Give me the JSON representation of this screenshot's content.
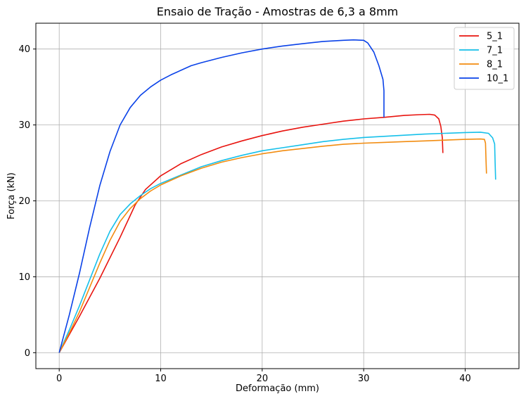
{
  "chart_data": {
    "type": "line",
    "title": "Ensaio de Tração - Amostras de 6,3 a 8mm",
    "xlabel": "Deformação (mm)",
    "ylabel": "Força (kN)",
    "xlim": [
      -2.3,
      45.3
    ],
    "ylim": [
      -2.1,
      43.4
    ],
    "xticks": [
      0,
      10,
      20,
      30,
      40
    ],
    "yticks": [
      0,
      10,
      20,
      30,
      40
    ],
    "xtick_labels": [
      "0",
      "10",
      "20",
      "30",
      "40"
    ],
    "ytick_labels": [
      "0",
      "10",
      "20",
      "30",
      "40"
    ],
    "grid": true,
    "legend_position": "top-right",
    "series": [
      {
        "name": "5_1",
        "color": "#e8140f",
        "points": [
          [
            0,
            0
          ],
          [
            2,
            4.8
          ],
          [
            4,
            9.8
          ],
          [
            6,
            15.2
          ],
          [
            7.5,
            19.5
          ],
          [
            8.5,
            21.5
          ],
          [
            10,
            23.3
          ],
          [
            12,
            24.9
          ],
          [
            14,
            26.1
          ],
          [
            16,
            27.1
          ],
          [
            18,
            27.9
          ],
          [
            20,
            28.6
          ],
          [
            22,
            29.2
          ],
          [
            24,
            29.7
          ],
          [
            26,
            30.1
          ],
          [
            28,
            30.5
          ],
          [
            30,
            30.8
          ],
          [
            32,
            31.0
          ],
          [
            34,
            31.25
          ],
          [
            35.5,
            31.35
          ],
          [
            36.5,
            31.4
          ],
          [
            37.0,
            31.3
          ],
          [
            37.4,
            30.8
          ],
          [
            37.6,
            29.8
          ],
          [
            37.75,
            28.3
          ],
          [
            37.8,
            26.3
          ]
        ]
      },
      {
        "name": "7_1",
        "color": "#16c0ea",
        "points": [
          [
            0,
            0
          ],
          [
            1,
            3.0
          ],
          [
            2,
            6.2
          ],
          [
            3,
            9.6
          ],
          [
            4,
            13.0
          ],
          [
            5,
            16.0
          ],
          [
            6,
            18.2
          ],
          [
            7,
            19.6
          ],
          [
            8,
            20.7
          ],
          [
            9,
            21.6
          ],
          [
            10,
            22.3
          ],
          [
            12,
            23.4
          ],
          [
            14,
            24.5
          ],
          [
            16,
            25.3
          ],
          [
            18,
            26.0
          ],
          [
            20,
            26.6
          ],
          [
            22,
            27.0
          ],
          [
            24,
            27.4
          ],
          [
            26,
            27.8
          ],
          [
            28,
            28.1
          ],
          [
            30,
            28.35
          ],
          [
            32,
            28.5
          ],
          [
            34,
            28.65
          ],
          [
            36,
            28.8
          ],
          [
            38,
            28.9
          ],
          [
            40,
            29.0
          ],
          [
            41.5,
            29.05
          ],
          [
            42.3,
            28.9
          ],
          [
            42.7,
            28.3
          ],
          [
            42.9,
            27.5
          ],
          [
            42.95,
            25.0
          ],
          [
            43.0,
            22.8
          ]
        ]
      },
      {
        "name": "8_1",
        "color": "#f28c10",
        "points": [
          [
            0,
            0
          ],
          [
            1,
            2.6
          ],
          [
            2,
            5.4
          ],
          [
            3,
            8.6
          ],
          [
            4,
            11.8
          ],
          [
            5,
            14.8
          ],
          [
            6,
            17.3
          ],
          [
            7,
            19.0
          ],
          [
            8,
            20.3
          ],
          [
            9,
            21.3
          ],
          [
            10,
            22.1
          ],
          [
            12,
            23.3
          ],
          [
            14,
            24.3
          ],
          [
            16,
            25.1
          ],
          [
            18,
            25.7
          ],
          [
            20,
            26.2
          ],
          [
            22,
            26.6
          ],
          [
            24,
            26.9
          ],
          [
            26,
            27.2
          ],
          [
            28,
            27.45
          ],
          [
            30,
            27.6
          ],
          [
            32,
            27.7
          ],
          [
            34,
            27.8
          ],
          [
            36,
            27.9
          ],
          [
            38,
            28.0
          ],
          [
            40,
            28.1
          ],
          [
            41.5,
            28.15
          ],
          [
            41.9,
            28.1
          ],
          [
            42.0,
            27.6
          ],
          [
            42.05,
            25.5
          ],
          [
            42.1,
            23.6
          ]
        ]
      },
      {
        "name": "10_1",
        "color": "#0a42e8",
        "points": [
          [
            0,
            0
          ],
          [
            1,
            5.0
          ],
          [
            2,
            10.5
          ],
          [
            3,
            16.5
          ],
          [
            4,
            22.0
          ],
          [
            5,
            26.5
          ],
          [
            6,
            30.0
          ],
          [
            7,
            32.3
          ],
          [
            8,
            33.9
          ],
          [
            9,
            35.0
          ],
          [
            10,
            35.9
          ],
          [
            11,
            36.6
          ],
          [
            12,
            37.2
          ],
          [
            13,
            37.8
          ],
          [
            14,
            38.2
          ],
          [
            16,
            38.9
          ],
          [
            18,
            39.5
          ],
          [
            20,
            40.0
          ],
          [
            22,
            40.4
          ],
          [
            24,
            40.7
          ],
          [
            26,
            41.0
          ],
          [
            28,
            41.15
          ],
          [
            29,
            41.2
          ],
          [
            30,
            41.15
          ],
          [
            30.4,
            40.8
          ],
          [
            31,
            39.6
          ],
          [
            31.5,
            37.8
          ],
          [
            31.9,
            36.0
          ],
          [
            32.0,
            34.5
          ],
          [
            32.0,
            31.0
          ]
        ]
      }
    ]
  }
}
